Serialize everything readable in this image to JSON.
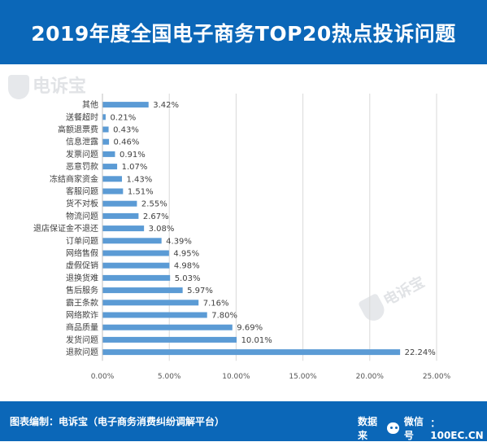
{
  "header": {
    "title": "2019年度全国电子商务TOP20热点投诉问题"
  },
  "watermark": {
    "text": "电诉宝",
    "small_text": "电诉宝"
  },
  "footer": {
    "source_label": "图表编制：电诉宝（电子商务消费纠纷调解平台）",
    "data_label": "数据来",
    "wechat_label": "微信号",
    "site": "：100EC.CN"
  },
  "colors": {
    "header_bg": "#0b67b8",
    "bar": "#5b9bd5",
    "grid": "#d9d9d9"
  },
  "chart_data": {
    "type": "bar",
    "orientation": "horizontal",
    "title": "2019年度全国电子商务TOP20热点投诉问题",
    "categories": [
      "其他",
      "送餐超时",
      "高额退票费",
      "信息泄露",
      "发票问题",
      "恶意罚款",
      "冻结商家资金",
      "客服问题",
      "货不对板",
      "物流问题",
      "退店保证金不退还",
      "订单问题",
      "网络售假",
      "虚假促销",
      "退换货难",
      "售后服务",
      "霸王条款",
      "网络欺诈",
      "商品质量",
      "发货问题",
      "退款问题"
    ],
    "values": [
      3.42,
      0.21,
      0.43,
      0.46,
      0.91,
      1.07,
      1.43,
      1.51,
      2.55,
      2.67,
      3.08,
      4.39,
      4.95,
      4.98,
      5.03,
      5.97,
      7.16,
      7.8,
      9.69,
      10.01,
      22.24
    ],
    "value_labels": [
      "3.42%",
      "0.21%",
      "0.43%",
      "0.46%",
      "0.91%",
      "1.07%",
      "1.43%",
      "1.51%",
      "2.55%",
      "2.67%",
      "3.08%",
      "4.39%",
      "4.95%",
      "4.98%",
      "5.03%",
      "5.97%",
      "7.16%",
      "7.80%",
      "9.69%",
      "10.01%",
      "22.24%"
    ],
    "x_ticks": [
      "0.00%",
      "5.00%",
      "10.00%",
      "15.00%",
      "20.00%",
      "25.00%"
    ],
    "xlim": [
      0,
      25
    ],
    "grid": true,
    "legend": "none"
  }
}
